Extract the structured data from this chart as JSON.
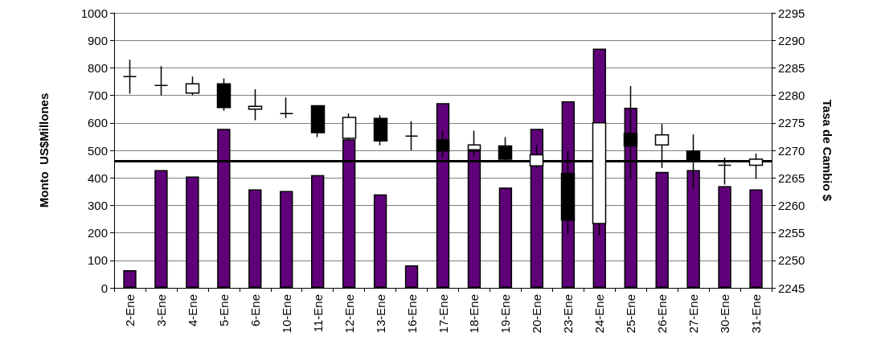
{
  "chart_data": {
    "type": "bar",
    "ylabel": "Monto  US$Millones",
    "y2label": "Tasa de Cambio $",
    "categories": [
      "2-Ene",
      "3-Ene",
      "4-Ene",
      "5-Ene",
      "6-Ene",
      "10-Ene",
      "11-Ene",
      "12-Ene",
      "13-Ene",
      "16-Ene",
      "17-Ene",
      "18-Ene",
      "19-Ene",
      "20-Ene",
      "23-Ene",
      "24-Ene",
      "25-Ene",
      "26-Ene",
      "27-Ene",
      "30-Ene",
      "31-Ene"
    ],
    "series": [
      {
        "color": "#5f0079",
        "values": [
          64,
          428,
          405,
          578,
          358,
          352,
          410,
          540,
          340,
          82,
          672,
          500,
          365,
          578,
          678,
          870,
          655,
          422,
          428,
          370,
          358
        ]
      },
      {
        "type": "candlestick",
        "axis": "y2",
        "color": "#000000",
        "ohlc": [
          [
            2283.4,
            2286.5,
            2280.3,
            2283.4
          ],
          [
            2281.8,
            2285.3,
            2280.0,
            2281.8
          ],
          [
            2280.4,
            2283.4,
            2280.0,
            2282.1
          ],
          [
            2282.1,
            2283.1,
            2277.2,
            2277.8
          ],
          [
            2277.5,
            2281.1,
            2275.5,
            2278.0
          ],
          [
            2276.7,
            2279.6,
            2275.9,
            2276.7
          ],
          [
            2278.1,
            2278.2,
            2272.4,
            2273.2
          ],
          [
            2272.2,
            2276.7,
            2271.9,
            2276.0
          ],
          [
            2275.8,
            2276.4,
            2270.9,
            2271.7
          ],
          [
            2272.6,
            2275.3,
            2270.0,
            2272.6
          ],
          [
            2271.9,
            2273.6,
            2268.7,
            2269.9
          ],
          [
            2270.1,
            2273.6,
            2269.0,
            2271.0
          ],
          [
            2270.8,
            2272.4,
            2268.2,
            2268.4
          ],
          [
            2267.2,
            2270.9,
            2266.8,
            2269.2
          ],
          [
            2265.8,
            2270.0,
            2254.8,
            2257.3
          ],
          [
            2256.7,
            2275.1,
            2254.5,
            2275.0
          ],
          [
            2273.1,
            2281.7,
            2264.8,
            2270.8
          ],
          [
            2271.0,
            2274.8,
            2266.8,
            2272.8
          ],
          [
            2269.9,
            2272.9,
            2263.0,
            2268.0
          ],
          [
            2267.3,
            2268.7,
            2263.8,
            2267.3
          ],
          [
            2267.3,
            2269.4,
            2264.8,
            2268.4
          ]
        ]
      }
    ],
    "ylim": [
      0,
      1000
    ],
    "yticks": [
      0,
      100,
      200,
      300,
      400,
      500,
      600,
      700,
      800,
      900,
      1000
    ],
    "y2lim": [
      2245,
      2295
    ],
    "y2ticks": [
      2245,
      2250,
      2255,
      2260,
      2265,
      2270,
      2275,
      2280,
      2285,
      2290,
      2295
    ],
    "ref_lines": [
      {
        "axis": "y",
        "value": 460,
        "color": "#000000"
      }
    ],
    "grid": "y"
  }
}
